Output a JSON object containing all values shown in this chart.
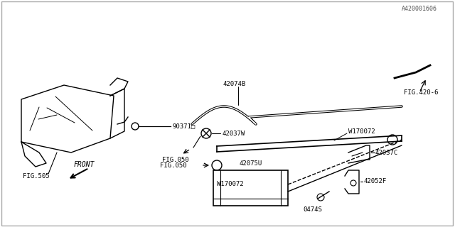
{
  "bg_color": "#ffffff",
  "line_color": "#000000",
  "text_color": "#000000",
  "fig_width": 6.4,
  "fig_height": 3.2,
  "dpi": 100,
  "title": "",
  "watermark": "A420001606",
  "labels": {
    "fig505": "FIG.505",
    "fig420_6": "FIG.420-6",
    "fig050_1": "FIG.050",
    "fig050_2": "FIG.050",
    "part_90371": "90371□",
    "part_42074B": "42074B",
    "part_42037W": "42037W",
    "part_w170072_1": "W170072",
    "part_w170072_2": "W170072",
    "part_42075U": "42075U",
    "part_42037C": "42037C",
    "part_42052F": "42052F",
    "part_0474S": "0474S",
    "front": "FRONT"
  }
}
